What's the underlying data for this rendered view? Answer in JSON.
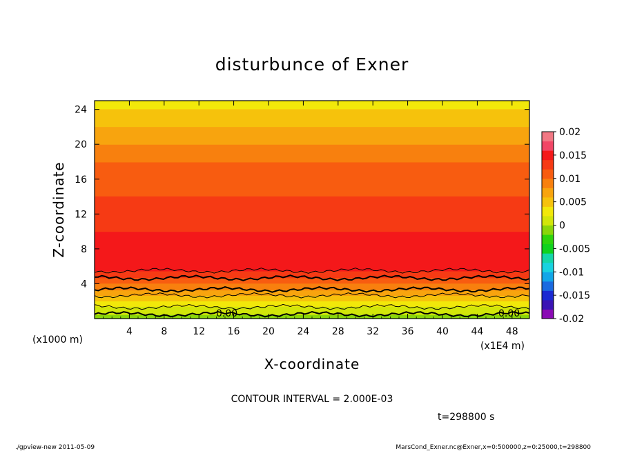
{
  "chart_data": {
    "type": "heatmap",
    "title": "disturbunce of Exner",
    "xlabel": "X-coordinate",
    "ylabel": "Z-coordinate",
    "x_unit": "(x1000 m)",
    "x_unit2": "(x1E4 m)",
    "xlim": [
      0,
      50
    ],
    "ylim": [
      0,
      25
    ],
    "x_ticks": [
      "4",
      "8",
      "12",
      "16",
      "20",
      "24",
      "28",
      "32",
      "36",
      "40",
      "44",
      "48"
    ],
    "y_ticks": [
      "4",
      "8",
      "12",
      "16",
      "20",
      "24"
    ],
    "colorbar": {
      "ticks": [
        "0.02",
        "0.015",
        "0.01",
        "0.005",
        "0",
        "-0.005",
        "-0.01",
        "-0.015",
        "-0.02"
      ],
      "range": [
        -0.02,
        0.02
      ]
    },
    "contour_interval_label": "CONTOUR INTERVAL = 2.000E-03",
    "time_label": "t=298800 s",
    "zero_labels": [
      "0.00",
      "0.00"
    ],
    "profile": {
      "z": [
        0,
        1,
        2,
        3,
        4,
        5,
        6,
        7.5,
        9,
        10,
        12,
        14,
        16,
        18,
        20,
        22,
        24,
        25
      ],
      "value": [
        -0.001,
        0.001,
        0.004,
        0.007,
        0.01,
        0.013,
        0.015,
        0.016,
        0.015,
        0.014,
        0.013,
        0.012,
        0.011,
        0.01,
        0.008,
        0.006,
        0.004,
        0.003
      ]
    },
    "grid": false,
    "legend": "colorbar-right"
  },
  "footer": {
    "left": "./gpview-new   2011-05-09",
    "right": "MarsCond_Exner.nc@Exner,x=0:500000,z=0:25000,t=298800"
  },
  "colors": {
    "levels": [
      "#8a0ab4",
      "#3a14b4",
      "#1a2ad2",
      "#1a6ae0",
      "#12a6e8",
      "#18d2e0",
      "#14d6a8",
      "#10d21e",
      "#2ed40c",
      "#8ad60a",
      "#d2e60a",
      "#f2e80a",
      "#f6c20c",
      "#f8a40e",
      "#f8800e",
      "#f85c10",
      "#f63a14",
      "#f4181a",
      "#f24666",
      "#f27884"
    ]
  }
}
